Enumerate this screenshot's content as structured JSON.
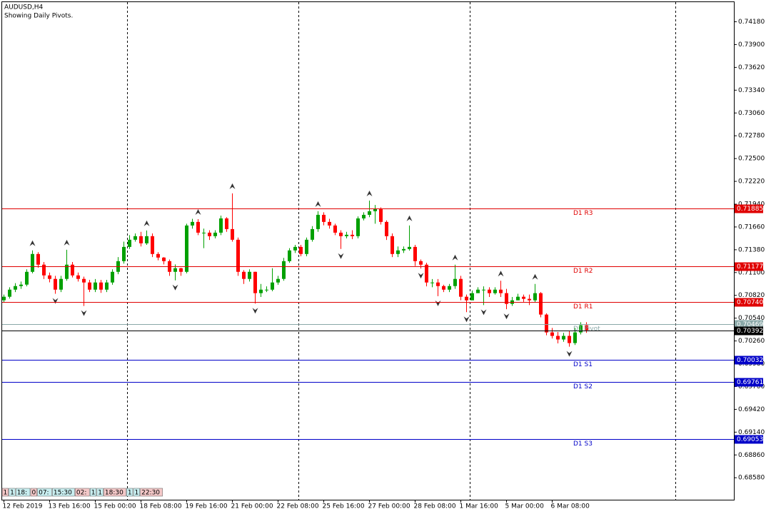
{
  "chart_data": {
    "type": "candlestick",
    "title": "AUDUSD,H4",
    "subtitle": "Showing Daily Pivots.",
    "up_color": "#00a000",
    "down_color": "#ff0000",
    "open": [
      0.7076,
      0.70803,
      0.7089,
      0.70934,
      0.70952,
      0.71109,
      0.71328,
      0.71197,
      0.71065,
      0.71022,
      0.7089,
      0.71022,
      0.71197,
      0.71065,
      0.71022,
      0.70978,
      0.7089,
      0.70978,
      0.7089,
      0.70978,
      0.71109,
      0.7124,
      0.71415,
      0.71503,
      0.71547,
      0.71459,
      0.71547,
      0.71328,
      0.71284,
      0.7124,
      0.71109,
      0.71153,
      0.71109,
      0.71678,
      0.71722,
      0.7159,
      0.7159,
      0.71547,
      0.7159,
      0.71765,
      0.71634,
      0.71503,
      0.71109,
      0.71022,
      0.71109,
      0.70847,
      0.7089,
      0.7089,
      0.70978,
      0.71022,
      0.7124,
      0.71372,
      0.71415,
      0.71328,
      0.71503,
      0.71634,
      0.71809,
      0.71722,
      0.71678,
      0.7159,
      0.71547,
      0.71564,
      0.71547,
      0.71765,
      0.71809,
      0.71853,
      0.71879,
      0.71722,
      0.71547,
      0.71328,
      0.71372,
      0.71389,
      0.71415,
      0.7124,
      0.71197,
      0.70978,
      0.70978,
      0.70934,
      0.7089,
      0.70934,
      0.71022,
      0.70803,
      0.70759,
      0.70847,
      0.7089,
      0.7089,
      0.70847,
      0.7089,
      0.70847,
      0.70715,
      0.70759,
      0.70803,
      0.70777,
      0.70759,
      0.70847,
      0.70584,
      0.70365,
      0.70322,
      0.70278,
      0.70322,
      0.70234,
      0.70365,
      0.70453
    ],
    "high": [
      0.7083,
      0.7092,
      0.7097,
      0.7099,
      0.7114,
      0.71372,
      0.7135,
      0.7123,
      0.711,
      0.7106,
      0.7106,
      0.7138,
      0.7123,
      0.711,
      0.7105,
      0.7101,
      0.7102,
      0.7101,
      0.7101,
      0.7114,
      0.7129,
      0.7148,
      0.7156,
      0.7158,
      0.716,
      0.71617,
      0.7158,
      0.7135,
      0.7129,
      0.7126,
      0.712,
      0.7116,
      0.717,
      0.7176,
      0.71756,
      0.7164,
      0.7162,
      0.7162,
      0.718,
      0.7178,
      0.72072,
      0.7153,
      0.7113,
      0.7114,
      0.7111,
      0.7096,
      0.7093,
      0.71153,
      0.7106,
      0.7128,
      0.714,
      0.7144,
      0.7144,
      0.7153,
      0.7167,
      0.71853,
      0.7184,
      0.7176,
      0.717,
      0.7162,
      0.716,
      0.7162,
      0.7179,
      0.7184,
      0.71984,
      0.7193,
      0.719,
      0.7174,
      0.7158,
      0.7142,
      0.7142,
      0.71678,
      0.7144,
      0.7126,
      0.7122,
      0.7102,
      0.7102,
      0.7095,
      0.7096,
      0.71197,
      0.7106,
      0.7083,
      0.7088,
      0.7092,
      0.7093,
      0.7092,
      0.7092,
      0.71,
      0.709,
      0.708,
      0.7084,
      0.7083,
      0.7083,
      0.7096,
      0.7086,
      0.706,
      0.7042,
      0.7037,
      0.7036,
      0.7038,
      0.7042,
      0.7049,
      0.7049
    ],
    "low": [
      0.7073,
      0.7078,
      0.7086,
      0.709,
      0.7093,
      0.7109,
      0.7116,
      0.7102,
      0.7098,
      0.7084,
      0.7086,
      0.71,
      0.7104,
      0.7099,
      0.70689,
      0.7086,
      0.7086,
      0.7085,
      0.7086,
      0.7095,
      0.7108,
      0.7121,
      0.7139,
      0.7148,
      0.7142,
      0.7144,
      0.7129,
      0.7125,
      0.712,
      0.7106,
      0.71004,
      0.7106,
      0.7109,
      0.7164,
      0.7156,
      0.714,
      0.715,
      0.7152,
      0.7156,
      0.716,
      0.7148,
      0.7106,
      0.7096,
      0.7099,
      0.70719,
      0.708,
      0.7086,
      0.7087,
      0.7095,
      0.71,
      0.7122,
      0.7134,
      0.713,
      0.713,
      0.7148,
      0.716,
      0.7168,
      0.7164,
      0.7156,
      0.7139,
      0.7152,
      0.7151,
      0.7152,
      0.7174,
      0.7178,
      0.717,
      0.7169,
      0.715,
      0.7129,
      0.7129,
      0.7134,
      0.7137,
      0.7118,
      0.7115,
      0.7093,
      0.7092,
      0.7081,
      0.7086,
      0.7086,
      0.709,
      0.7076,
      0.70614,
      0.708,
      0.7085,
      0.707,
      0.708,
      0.7083,
      0.708,
      0.7065,
      0.7069,
      0.7076,
      0.7074,
      0.707,
      0.7073,
      0.7055,
      0.7033,
      0.7029,
      0.7023,
      0.7025,
      0.7019,
      0.7021,
      0.7034,
      0.7036
    ],
    "close": [
      0.70803,
      0.7089,
      0.70934,
      0.70952,
      0.71109,
      0.71328,
      0.71197,
      0.71065,
      0.71022,
      0.7089,
      0.71022,
      0.71197,
      0.71065,
      0.71022,
      0.70978,
      0.7089,
      0.70978,
      0.7089,
      0.70978,
      0.71109,
      0.7124,
      0.71415,
      0.71503,
      0.71547,
      0.71459,
      0.71547,
      0.71328,
      0.71284,
      0.7124,
      0.71109,
      0.71153,
      0.71109,
      0.71678,
      0.71722,
      0.7159,
      0.7159,
      0.71547,
      0.7159,
      0.71765,
      0.71634,
      0.71503,
      0.71109,
      0.71022,
      0.71109,
      0.70847,
      0.7089,
      0.7089,
      0.70978,
      0.71022,
      0.7124,
      0.71372,
      0.71415,
      0.71328,
      0.71503,
      0.71634,
      0.71809,
      0.71722,
      0.71678,
      0.7159,
      0.71547,
      0.71564,
      0.71547,
      0.71765,
      0.71809,
      0.71853,
      0.71879,
      0.71722,
      0.71547,
      0.71328,
      0.71372,
      0.71389,
      0.71415,
      0.7124,
      0.71197,
      0.70978,
      0.70978,
      0.70934,
      0.7089,
      0.70934,
      0.71022,
      0.70803,
      0.70759,
      0.70847,
      0.7089,
      0.7089,
      0.70847,
      0.7089,
      0.70847,
      0.70715,
      0.70759,
      0.70803,
      0.70777,
      0.70759,
      0.70847,
      0.70584,
      0.70365,
      0.70322,
      0.70278,
      0.70322,
      0.70234,
      0.70365,
      0.70453,
      0.70392
    ],
    "fractals_up": {
      "index": [
        5,
        11,
        25,
        34,
        40,
        55,
        64,
        71,
        79,
        87,
        93
      ],
      "values": [
        0.71372,
        0.7138,
        0.71617,
        0.71756,
        0.72072,
        0.71853,
        0.71984,
        0.71678,
        0.71197,
        0.71,
        0.7096
      ]
    },
    "fractals_down": {
      "index": [
        9,
        14,
        30,
        44,
        59,
        73,
        76,
        81,
        84,
        88,
        99
      ],
      "values": [
        0.7084,
        0.70689,
        0.71004,
        0.70719,
        0.7139,
        0.7115,
        0.7081,
        0.70614,
        0.707,
        0.7065,
        0.7019
      ]
    },
    "ylim": [
      0.6831,
      0.7443
    ],
    "yticks": [
      {
        "value": 0.7418,
        "label": "0.74180"
      },
      {
        "value": 0.739,
        "label": "0.73900"
      },
      {
        "value": 0.7362,
        "label": "0.73620"
      },
      {
        "value": 0.7334,
        "label": "0.73340"
      },
      {
        "value": 0.7306,
        "label": "0.73060"
      },
      {
        "value": 0.7278,
        "label": "0.72780"
      },
      {
        "value": 0.725,
        "label": "0.72500"
      },
      {
        "value": 0.7222,
        "label": "0.72220"
      },
      {
        "value": 0.7194,
        "label": "0.71940"
      },
      {
        "value": 0.7166,
        "label": "0.71660"
      },
      {
        "value": 0.7138,
        "label": "0.71380"
      },
      {
        "value": 0.711,
        "label": "0.71100"
      },
      {
        "value": 0.7082,
        "label": "0.70820"
      },
      {
        "value": 0.7054,
        "label": "0.70540"
      },
      {
        "value": 0.7026,
        "label": "0.70260"
      },
      {
        "value": 0.6998,
        "label": "0.69980"
      },
      {
        "value": 0.697,
        "label": "0.69700"
      },
      {
        "value": 0.6942,
        "label": "0.69420"
      },
      {
        "value": 0.6914,
        "label": "0.69140"
      },
      {
        "value": 0.6886,
        "label": "0.68860"
      },
      {
        "value": 0.6858,
        "label": "0.68580"
      }
    ],
    "xticks": [
      {
        "value": 0,
        "label": "12 Feb 2019"
      },
      {
        "value": 8,
        "label": "13 Feb 16:00"
      },
      {
        "value": 16,
        "label": "15 Feb 00:00"
      },
      {
        "value": 24,
        "label": "18 Feb 08:00"
      },
      {
        "value": 32,
        "label": "19 Feb 16:00"
      },
      {
        "value": 40,
        "label": "21 Feb 00:00"
      },
      {
        "value": 48,
        "label": "22 Feb 08:00"
      },
      {
        "value": 56,
        "label": "25 Feb 16:00"
      },
      {
        "value": 64,
        "label": "27 Feb 00:00"
      },
      {
        "value": 72,
        "label": "28 Feb 08:00"
      },
      {
        "value": 80,
        "label": "1 Mar 16:00"
      },
      {
        "value": 88,
        "label": "5 Mar 00:00"
      },
      {
        "value": 96,
        "label": "6 Mar 08:00"
      }
    ],
    "pivots": [
      {
        "name": "D1 R3",
        "value": 0.71885,
        "label": "0.71885",
        "color": "#e00000"
      },
      {
        "name": "D1 R2",
        "value": 0.71177,
        "label": "0.71177",
        "color": "#e00000"
      },
      {
        "name": "D1 R1",
        "value": 0.7074,
        "label": "0.70740",
        "color": "#e00000"
      },
      {
        "name": "D1 Pivot",
        "value": 0.70469,
        "label": "0.70469",
        "color": "#8aa8a8"
      },
      {
        "name": "D1 S1",
        "value": 0.70032,
        "label": "0.70032",
        "color": "#0000c8"
      },
      {
        "name": "D1 S2",
        "value": 0.69761,
        "label": "0.69761",
        "color": "#0000c8"
      },
      {
        "name": "D1 S3",
        "value": 0.69053,
        "label": "0.69053",
        "color": "#0000c8"
      }
    ],
    "last_price": {
      "value": 0.70392,
      "label": "0.70392",
      "color": "#000000"
    },
    "status_labels": [
      "1",
      "1",
      "18:",
      "0",
      "07:",
      "15:30",
      "02:",
      "1",
      "1",
      "18:30",
      "1",
      "1",
      "22:30"
    ]
  }
}
